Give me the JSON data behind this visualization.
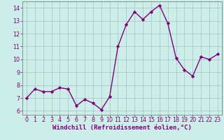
{
  "x": [
    0,
    1,
    2,
    3,
    4,
    5,
    6,
    7,
    8,
    9,
    10,
    11,
    12,
    13,
    14,
    15,
    16,
    17,
    18,
    19,
    20,
    21,
    22,
    23
  ],
  "y": [
    7.0,
    7.7,
    7.5,
    7.5,
    7.8,
    7.7,
    6.4,
    6.9,
    6.6,
    6.1,
    7.1,
    11.0,
    12.7,
    13.7,
    13.1,
    13.7,
    14.2,
    12.8,
    10.1,
    9.2,
    8.7,
    10.2,
    10.0,
    10.4
  ],
  "line_color": "#800080",
  "marker": "D",
  "marker_size": 2.2,
  "line_width": 1.0,
  "bg_color": "#cceee8",
  "grid_color": "#b0c8c8",
  "xlabel": "Windchill (Refroidissement éolien,°C)",
  "xlabel_color": "#800080",
  "xlabel_fontsize": 6.5,
  "ylim": [
    5.7,
    14.5
  ],
  "xlim": [
    -0.5,
    23.5
  ],
  "yticks": [
    6,
    7,
    8,
    9,
    10,
    11,
    12,
    13,
    14
  ],
  "xticks": [
    0,
    1,
    2,
    3,
    4,
    5,
    6,
    7,
    8,
    9,
    10,
    11,
    12,
    13,
    14,
    15,
    16,
    17,
    18,
    19,
    20,
    21,
    22,
    23
  ],
  "tick_color": "#800080",
  "tick_fontsize": 5.8,
  "spine_color": "#808080"
}
